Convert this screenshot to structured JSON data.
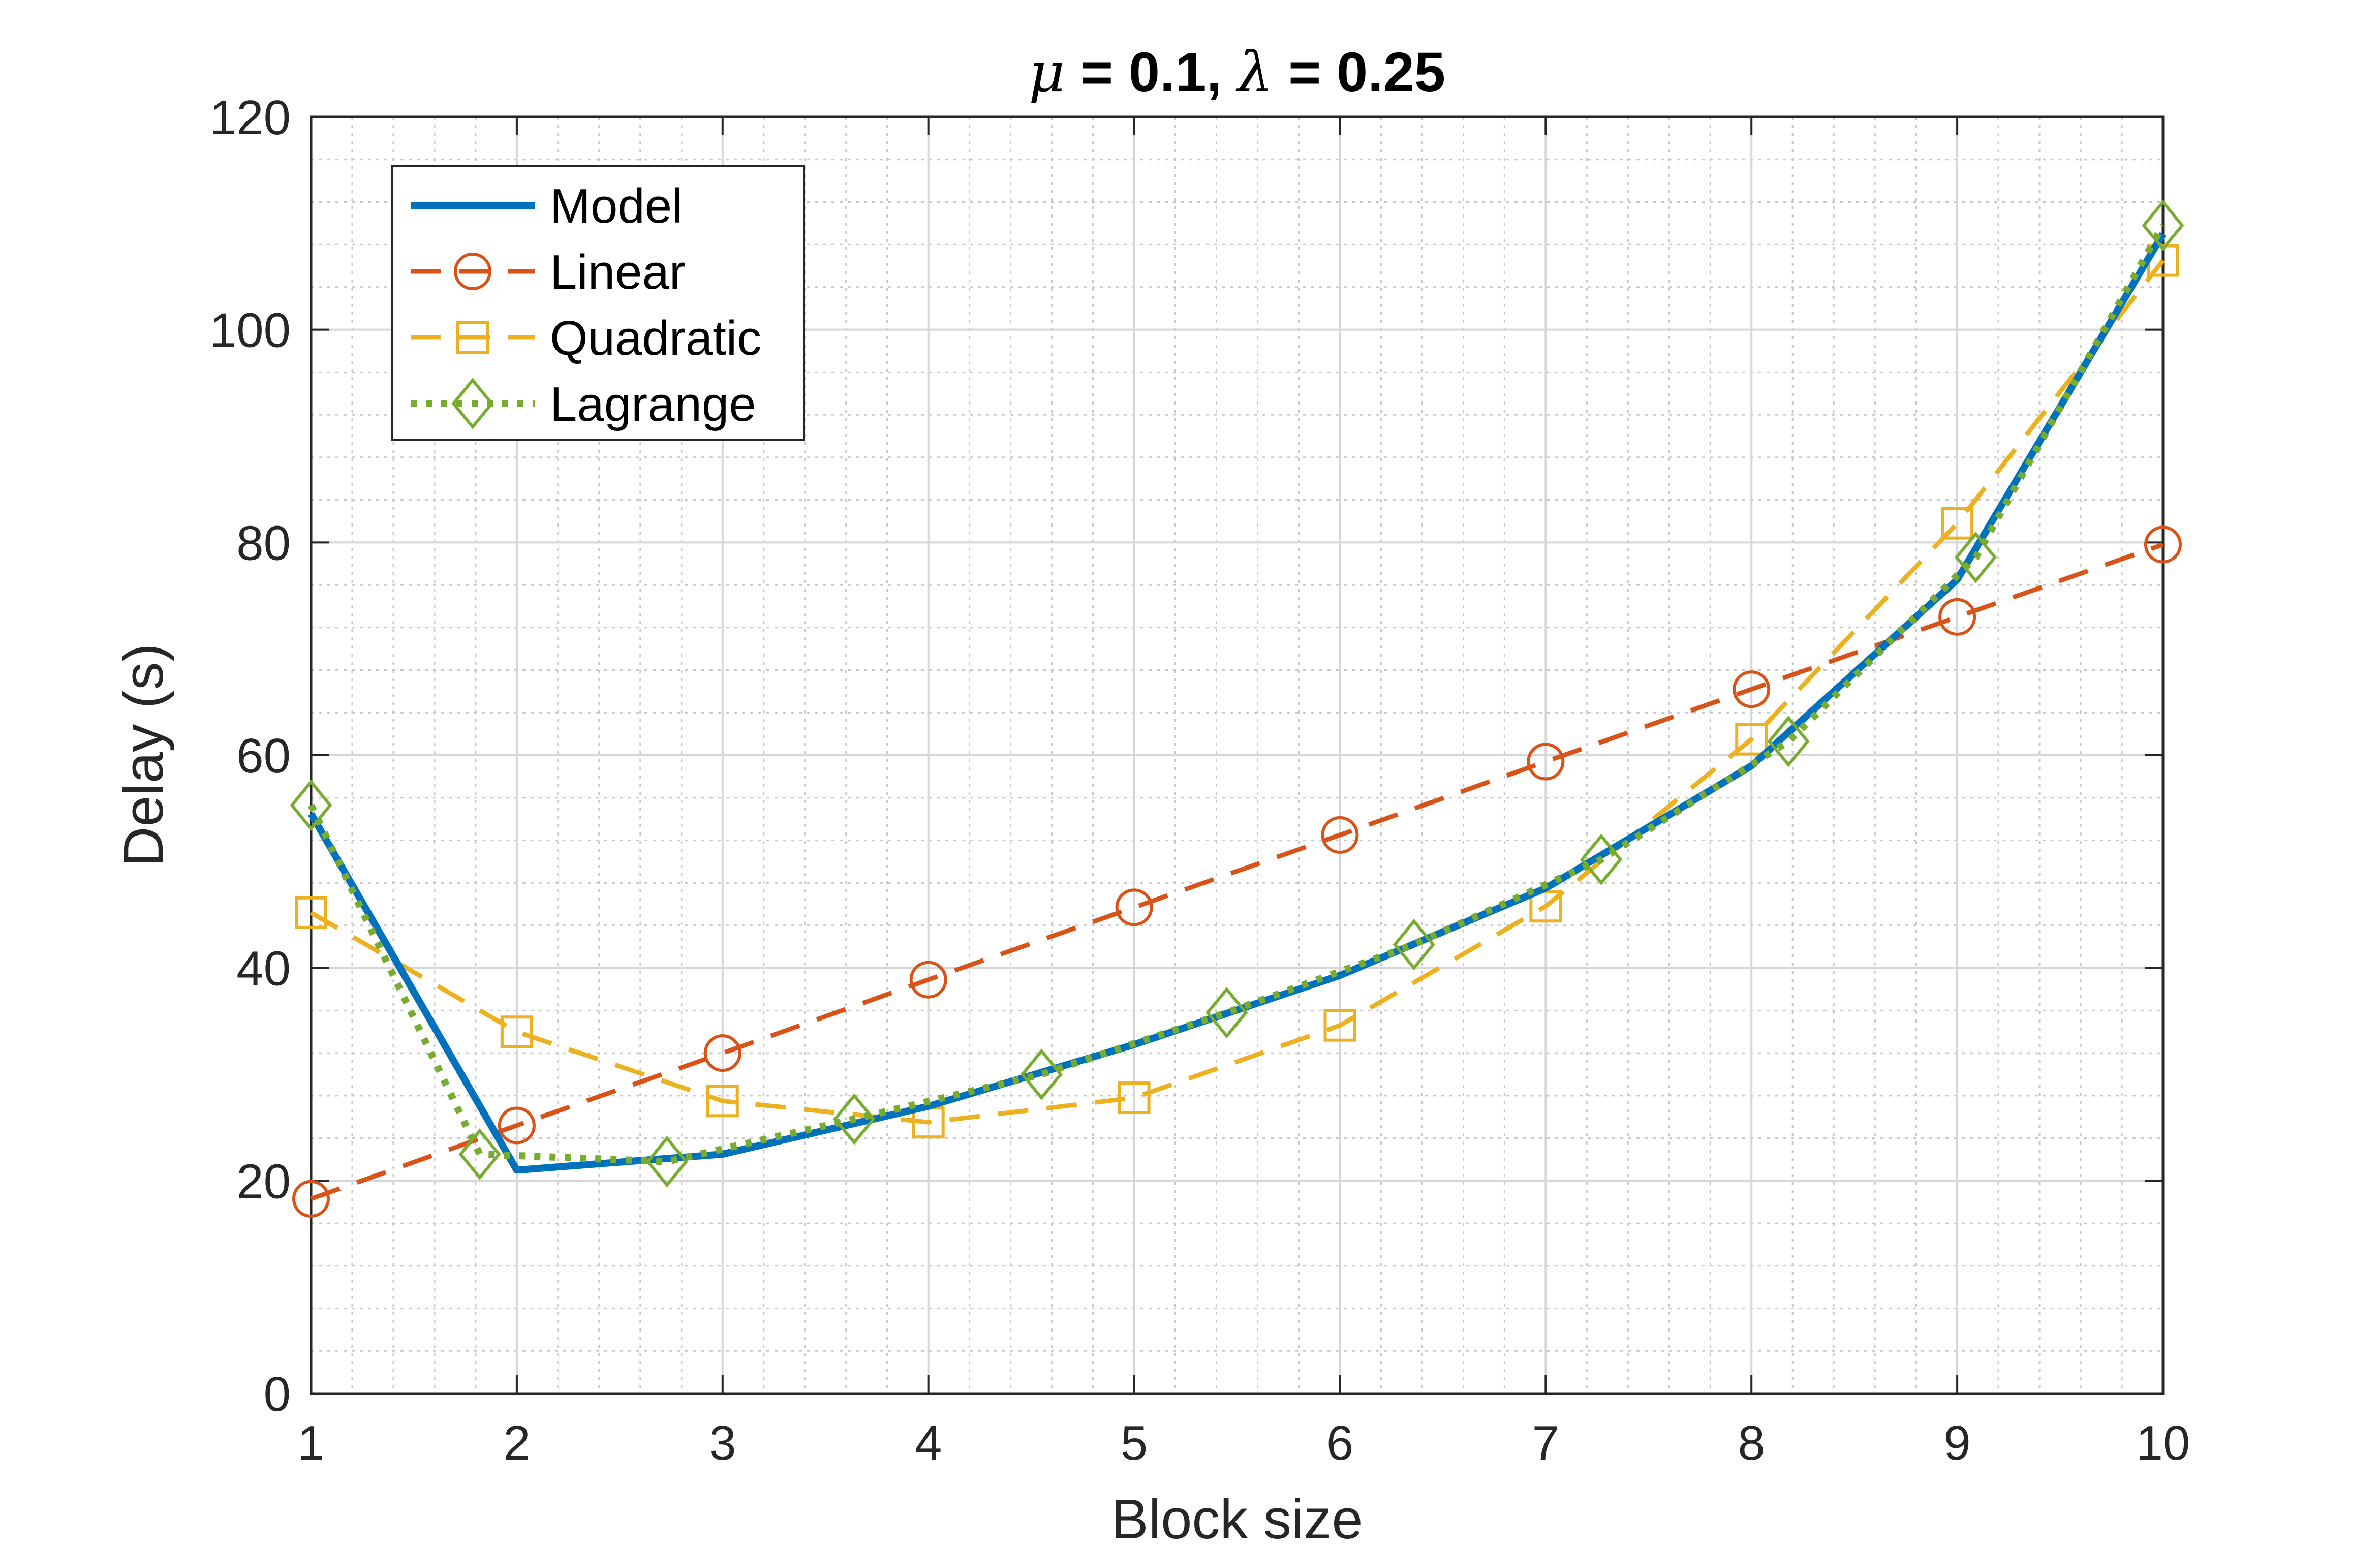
{
  "chart_data": {
    "type": "line",
    "title_parts": {
      "mu_symbol": "μ",
      "mu_rest": " = 0.1, ",
      "lambda_symbol": "λ",
      "lambda_rest": " = 0.25"
    },
    "xlabel": "Block size",
    "ylabel": "Delay (s)",
    "xlim": [
      1,
      10
    ],
    "ylim": [
      0,
      120
    ],
    "x_ticks": [
      1,
      2,
      3,
      4,
      5,
      6,
      7,
      8,
      9,
      10
    ],
    "y_ticks": [
      0,
      20,
      40,
      60,
      80,
      100,
      120
    ],
    "x_tick_labels": [
      "1",
      "2",
      "3",
      "4",
      "5",
      "6",
      "7",
      "8",
      "9",
      "10"
    ],
    "y_tick_labels": [
      "0",
      "20",
      "40",
      "60",
      "80",
      "100",
      "120"
    ],
    "grid": true,
    "minor_grid": true,
    "legend_position": "top-left",
    "series": [
      {
        "name": "Model",
        "color": "#0072BD",
        "line_style": "solid",
        "marker": "none",
        "x": [
          1,
          2,
          3,
          4,
          5,
          6,
          7,
          8,
          9,
          10
        ],
        "y": [
          54.5,
          21.0,
          22.5,
          27.0,
          32.8,
          39.3,
          47.5,
          59.0,
          76.5,
          109.0
        ]
      },
      {
        "name": "Linear",
        "color": "#D95319",
        "line_style": "dashed",
        "marker": "circle",
        "x": [
          1,
          2,
          3,
          4,
          5,
          6,
          7,
          8,
          9,
          10
        ],
        "y": [
          18.3,
          25.2,
          32.0,
          38.9,
          45.7,
          52.5,
          59.4,
          66.2,
          73.0,
          79.8
        ]
      },
      {
        "name": "Quadratic",
        "color": "#EDB120",
        "line_style": "dashed",
        "marker": "square",
        "x": [
          1,
          2,
          3,
          4,
          5,
          6,
          7,
          8,
          9,
          10
        ],
        "y": [
          45.2,
          34.0,
          27.5,
          25.5,
          27.8,
          34.6,
          45.8,
          61.5,
          81.8,
          106.5
        ]
      },
      {
        "name": "Lagrange",
        "color": "#77AC30",
        "line_style": "dotted",
        "marker": "diamond",
        "x": [
          1,
          1.82,
          2.73,
          3.64,
          4.55,
          5.45,
          6.36,
          7.27,
          8.18,
          9.09,
          10
        ],
        "y": [
          55.3,
          22.5,
          21.8,
          25.8,
          30.0,
          35.8,
          42.2,
          50.2,
          61.3,
          78.6,
          109.8
        ]
      }
    ]
  }
}
